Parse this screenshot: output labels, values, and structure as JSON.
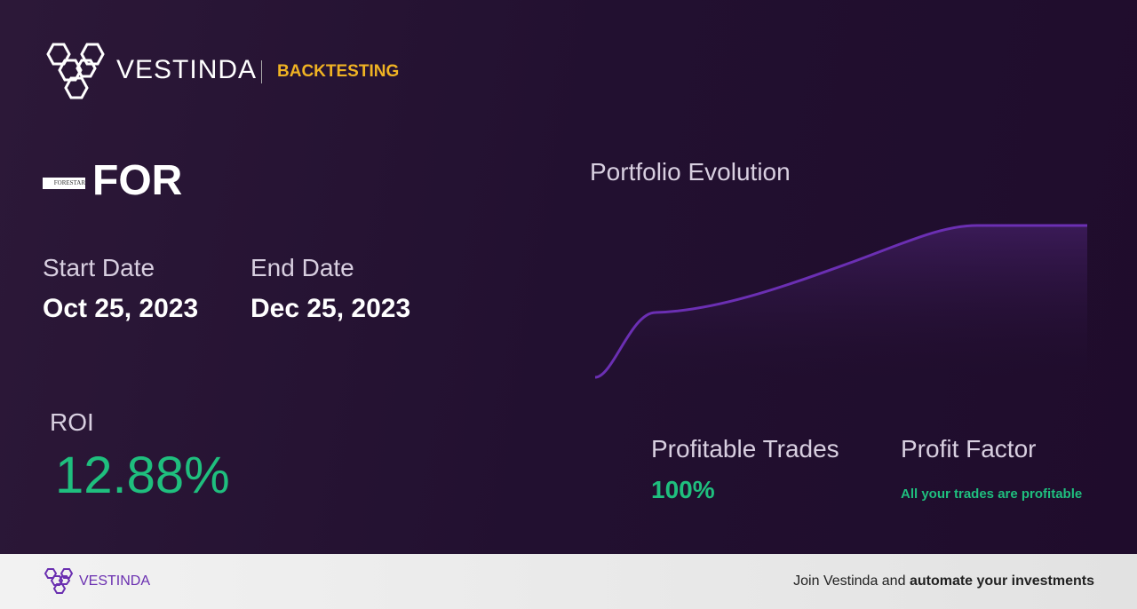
{
  "header": {
    "brand": "VESTINDA",
    "section": "BACKTESTING"
  },
  "asset": {
    "logo_text": "FORESTAR",
    "ticker": "FOR"
  },
  "dates": {
    "start_label": "Start Date",
    "start_value": "Oct 25, 2023",
    "end_label": "End Date",
    "end_value": "Dec 25, 2023"
  },
  "chart_title": "Portfolio Evolution",
  "roi": {
    "label": "ROI",
    "value": "12.88%"
  },
  "profitable_trades": {
    "label": "Profitable Trades",
    "value": "100%"
  },
  "profit_factor": {
    "label": "Profit Factor",
    "value": "All your trades are profitable"
  },
  "footer": {
    "brand": "VESTINDA",
    "cta_prefix": "Join Vestinda and",
    "cta_bold": "automate your investments"
  }
}
